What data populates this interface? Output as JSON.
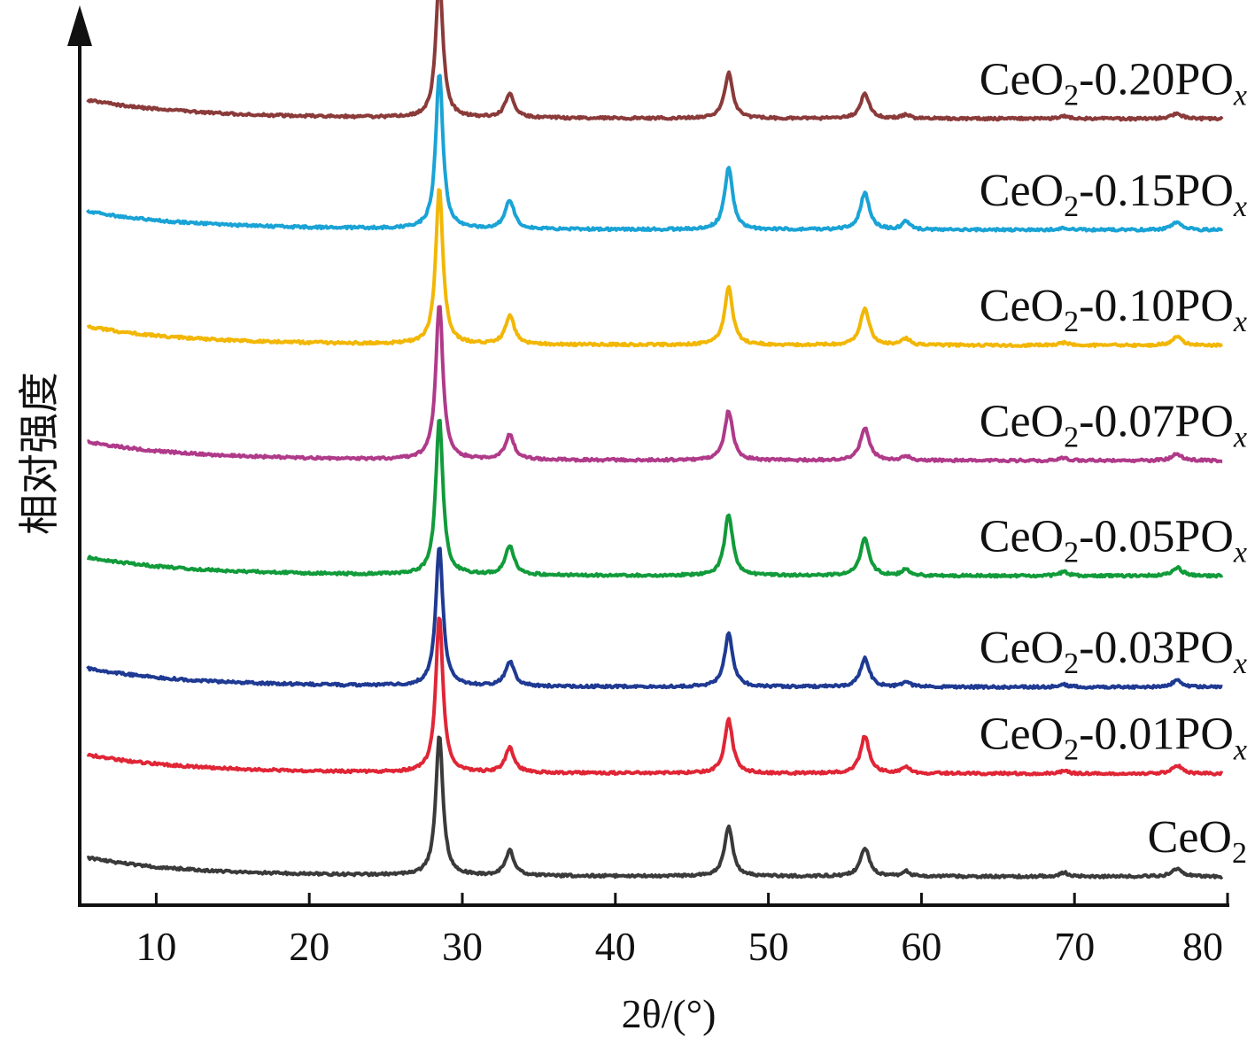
{
  "chart_data": {
    "type": "line",
    "xlabel": "2θ/(°)",
    "ylabel": "相对强度",
    "xlim": [
      5,
      80
    ],
    "xticks": [
      10,
      20,
      30,
      40,
      50,
      60,
      70,
      80
    ],
    "y_ticks_shown": false,
    "grid": false,
    "peaks_2theta": [
      28.5,
      33.1,
      47.4,
      56.3,
      59.0,
      69.3,
      76.7
    ],
    "series": [
      {
        "name": "CeO2-0.20POx",
        "label_main": "CeO",
        "label_sub": "2",
        "label_suffix": "-0.20PO",
        "label_x": "x",
        "color": "#8B3A3A",
        "baseline": 8.9,
        "peak_heights": [
          1.7,
          0.3,
          0.55,
          0.3,
          0.05,
          0.03,
          0.06
        ]
      },
      {
        "name": "CeO2-0.15POx",
        "label_main": "CeO",
        "label_sub": "2",
        "label_suffix": "-0.15PO",
        "label_x": "x",
        "color": "#1AA3D6",
        "baseline": 7.55,
        "peak_heights": [
          1.9,
          0.35,
          0.75,
          0.45,
          0.1,
          0.03,
          0.1
        ]
      },
      {
        "name": "CeO2-0.10POx",
        "label_main": "CeO",
        "label_sub": "2",
        "label_suffix": "-0.10PO",
        "label_x": "x",
        "color": "#F2B705",
        "baseline": 6.15,
        "peak_heights": [
          1.9,
          0.35,
          0.7,
          0.45,
          0.08,
          0.03,
          0.1
        ]
      },
      {
        "name": "CeO2-0.07POx",
        "label_main": "CeO",
        "label_sub": "2",
        "label_suffix": "-0.07PO",
        "label_x": "x",
        "color": "#B03A8A",
        "baseline": 4.75,
        "peak_heights": [
          1.9,
          0.3,
          0.6,
          0.4,
          0.05,
          0.03,
          0.08
        ]
      },
      {
        "name": "CeO2-0.05POx",
        "label_main": "CeO",
        "label_sub": "2",
        "label_suffix": "-0.05PO",
        "label_x": "x",
        "color": "#119B3A",
        "baseline": 3.35,
        "peak_heights": [
          1.9,
          0.35,
          0.75,
          0.45,
          0.08,
          0.05,
          0.1
        ]
      },
      {
        "name": "CeO2-0.03POx",
        "label_main": "CeO",
        "label_sub": "2",
        "label_suffix": "-0.03PO",
        "label_x": "x",
        "color": "#1F3A93",
        "baseline": 2.0,
        "peak_heights": [
          1.7,
          0.3,
          0.65,
          0.35,
          0.06,
          0.03,
          0.08
        ]
      },
      {
        "name": "CeO2-0.01POx",
        "label_main": "CeO",
        "label_sub": "2",
        "label_suffix": "-0.01PO",
        "label_x": "x",
        "color": "#E02636",
        "baseline": 0.95,
        "peak_heights": [
          1.9,
          0.3,
          0.65,
          0.45,
          0.08,
          0.03,
          0.1
        ]
      },
      {
        "name": "CeO2",
        "label_main": "CeO",
        "label_sub": "2",
        "label_suffix": "",
        "label_x": "",
        "color": "#3A3A3A",
        "baseline": -0.3,
        "peak_heights": [
          1.7,
          0.3,
          0.6,
          0.35,
          0.06,
          0.05,
          0.1
        ]
      }
    ]
  }
}
